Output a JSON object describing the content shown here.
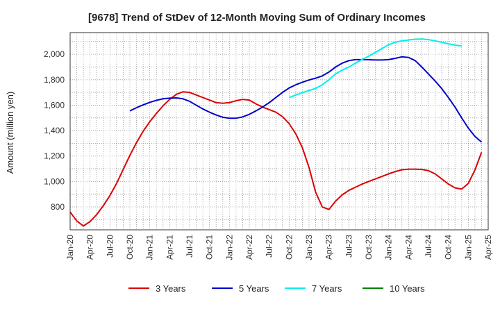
{
  "chart_data": {
    "type": "line",
    "title": "[9678]  Trend of StDev of 12-Month Moving Sum of Ordinary Incomes",
    "ylabel": "Amount (million yen)",
    "xlabel": "",
    "x_ticks": [
      "Jan-20",
      "Apr-20",
      "Jul-20",
      "Oct-20",
      "Jan-21",
      "Apr-21",
      "Jul-21",
      "Oct-21",
      "Jan-22",
      "Apr-22",
      "Jul-22",
      "Oct-22",
      "Jan-23",
      "Apr-23",
      "Jul-23",
      "Oct-23",
      "Jan-24",
      "Apr-24",
      "Jul-24",
      "Oct-24",
      "Jan-25",
      "Apr-25"
    ],
    "y_ticks": [
      800,
      1000,
      1200,
      1400,
      1600,
      1800,
      2000
    ],
    "ylim": [
      620,
      2170
    ],
    "grid": true,
    "legend_position": "bottom",
    "series": [
      {
        "name": "3 Years",
        "color": "#dd0000",
        "values": [
          760,
          690,
          650,
          685,
          740,
          810,
          890,
          985,
          1095,
          1205,
          1305,
          1395,
          1470,
          1535,
          1595,
          1645,
          1685,
          1705,
          1700,
          1680,
          1660,
          1640,
          1620,
          1615,
          1620,
          1635,
          1645,
          1640,
          1610,
          1585,
          1565,
          1545,
          1510,
          1455,
          1375,
          1265,
          1110,
          915,
          800,
          780,
          845,
          895,
          930,
          955,
          980,
          1000,
          1020,
          1040,
          1060,
          1078,
          1092,
          1097,
          1097,
          1095,
          1085,
          1060,
          1020,
          980,
          950,
          940,
          985,
          1090,
          1230
        ]
      },
      {
        "name": "5 Years",
        "color": "#0000cc",
        "values": [
          null,
          null,
          null,
          null,
          null,
          null,
          null,
          null,
          null,
          1555,
          1580,
          1602,
          1622,
          1638,
          1650,
          1655,
          1657,
          1650,
          1630,
          1600,
          1570,
          1545,
          1523,
          1505,
          1497,
          1497,
          1508,
          1528,
          1555,
          1585,
          1620,
          1660,
          1700,
          1735,
          1760,
          1780,
          1798,
          1812,
          1830,
          1860,
          1900,
          1930,
          1950,
          1958,
          1958,
          1957,
          1955,
          1955,
          1958,
          1968,
          1980,
          1975,
          1950,
          1900,
          1845,
          1790,
          1730,
          1660,
          1585,
          1500,
          1420,
          1355,
          1310
        ]
      },
      {
        "name": "7 Years",
        "color": "#00eeee",
        "values": [
          null,
          null,
          null,
          null,
          null,
          null,
          null,
          null,
          null,
          null,
          null,
          null,
          null,
          null,
          null,
          null,
          null,
          null,
          null,
          null,
          null,
          null,
          null,
          null,
          null,
          null,
          null,
          null,
          null,
          null,
          null,
          null,
          null,
          1660,
          1680,
          1698,
          1715,
          1732,
          1760,
          1800,
          1845,
          1875,
          1900,
          1930,
          1960,
          1985,
          2015,
          2045,
          2075,
          2095,
          2105,
          2112,
          2118,
          2120,
          2115,
          2105,
          2095,
          2082,
          2072,
          2065,
          null,
          null,
          null
        ]
      },
      {
        "name": "10 Years",
        "color": "#008000",
        "values": []
      }
    ]
  }
}
